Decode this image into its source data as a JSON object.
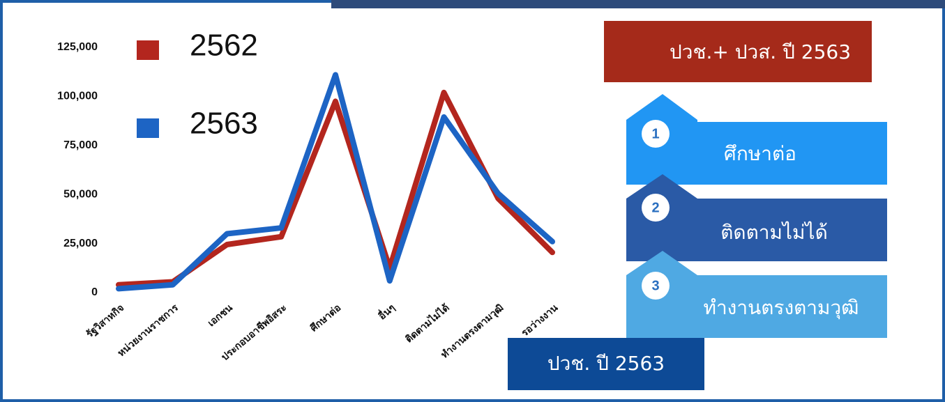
{
  "chart_data": {
    "type": "line",
    "categories": [
      "รัฐวิสาหกิจ",
      "หน่วยงานราชการ",
      "เอกชน",
      "ประกอบอาชีพอิสระ",
      "ศึกษาต่อ",
      "อื่นๆ",
      "ติดตามไม่ได้",
      "ทำงานตรงตามวุฒิ",
      "รอว่างงาน"
    ],
    "series": [
      {
        "name": "2562",
        "color": "#b3261e",
        "values": [
          4000,
          5500,
          24500,
          28500,
          97500,
          12500,
          102000,
          48000,
          20500
        ]
      },
      {
        "name": "2563",
        "color": "#1d64c4",
        "values": [
          2000,
          4000,
          30000,
          33000,
          111000,
          6000,
          89500,
          50500,
          26000
        ]
      }
    ],
    "ylim": [
      0,
      125000
    ],
    "yticks": [
      0,
      {
        "value": 25000,
        "label": "25,000"
      },
      {
        "value": 50000,
        "label": "50,000"
      },
      {
        "value": 75000,
        "label": "75,000"
      },
      {
        "value": 100000,
        "label": "100,000"
      },
      {
        "value": 125000,
        "label": "125,000"
      }
    ]
  },
  "panel": {
    "title": "ปวช.+ ปวส. ปี 2563",
    "ranks": [
      {
        "number": 1,
        "label": "ศึกษาต่อ"
      },
      {
        "number": 2,
        "label": "ติดตามไม่ได้"
      },
      {
        "number": 3,
        "label": "ทำงานตรงตามวุฒิ"
      }
    ],
    "footer": "ปวช. ปี 2563"
  }
}
